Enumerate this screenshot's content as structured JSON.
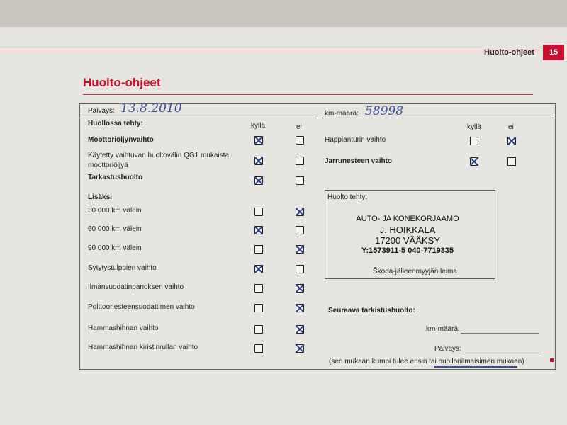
{
  "header": {
    "section": "Huolto-ohjeet",
    "page_number": "15",
    "title": "Huolto-ohjeet"
  },
  "form": {
    "date_label": "Päiväys:",
    "date_value": "13.8.2010",
    "km_label": "km-määrä:",
    "km_value": "58998",
    "done_heading": "Huollossa tehty:",
    "col_yes": "kyllä",
    "col_no": "ei",
    "left_items": [
      {
        "label": "Moottoriöljynvaihto",
        "bold": true,
        "checked": "yes"
      },
      {
        "label": "Käytetty vaihtuvan huoltovälin QG1 mukaista",
        "label2": "moottoriöljyä",
        "bold": false,
        "checked": "yes"
      },
      {
        "label": "Tarkastushuolto",
        "bold": true,
        "checked": "yes"
      }
    ],
    "extra_heading": "Lisäksi",
    "extra_items": [
      {
        "label": "30 000 km välein",
        "checked": "no"
      },
      {
        "label": "60 000 km välein",
        "checked": "yes"
      },
      {
        "label": "90 000 km välein",
        "checked": "no"
      },
      {
        "label": "Sytytystulppien vaihto",
        "checked": "yes"
      },
      {
        "label": "Ilmansuodatinpanoksen vaihto",
        "checked": "no"
      },
      {
        "label": "Polttoonesteensuodattimen vaihto",
        "checked": "no"
      },
      {
        "label": "Hammashihnan vaihto",
        "checked": "no"
      },
      {
        "label": "Hammashihnan kiristinrullan vaihto",
        "checked": "no"
      }
    ],
    "right_items": [
      {
        "label": "Happianturin vaihto",
        "bold": false,
        "checked": "no"
      },
      {
        "label": "Jarrunesteen vaihto",
        "bold": true,
        "checked": "yes"
      }
    ],
    "service_done_label": "Huolto tehty:",
    "stamp": [
      "AUTO- JA KONEKORJAAMO",
      "J. HOIKKALA",
      "17200 VÄÄKSY",
      "Y:1573911-5 040-7719335"
    ],
    "stamp_caption": "Škoda-jälleenmyyjän leima",
    "next_heading": "Seuraava tarkistushuolto:",
    "next_km_label": "km-määrä:",
    "next_date_label": "Päiväys:",
    "note": "(sen mukaan kumpi tulee ensin tai huollonilmaisimen mukaan)"
  },
  "colors": {
    "accent": "#c8102e",
    "ink": "#3a4ea0"
  }
}
